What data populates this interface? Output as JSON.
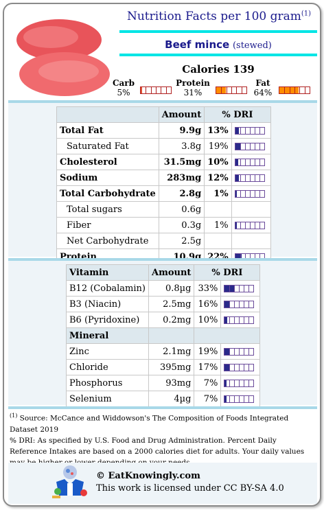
{
  "header": {
    "title": "Nutrition Facts per 100 gram",
    "title_note": "(1)",
    "food_name": "Beef mince",
    "food_qualifier": "(stewed)",
    "calories_label": "Calories 139"
  },
  "macros": [
    {
      "label": "Carb",
      "pct": "5%",
      "fraction": 0.05,
      "color": "#e05030"
    },
    {
      "label": "Protein",
      "pct": "31%",
      "fraction": 0.31,
      "color": "#ff8c00"
    },
    {
      "label": "Fat",
      "pct": "64%",
      "fraction": 0.64,
      "color": "#ff8c00"
    }
  ],
  "nutrients": {
    "col_amount": "Amount",
    "col_dri": "% DRI",
    "rows": [
      {
        "name": "Total Fat",
        "amount": "9.9g",
        "dri": "13%",
        "level": 0.13,
        "bold": true,
        "indent": false
      },
      {
        "name": "Saturated Fat",
        "amount": "3.8g",
        "dri": "19%",
        "level": 0.19,
        "bold": false,
        "indent": true
      },
      {
        "name": "Cholesterol",
        "amount": "31.5mg",
        "dri": "10%",
        "level": 0.1,
        "bold": true,
        "indent": false
      },
      {
        "name": "Sodium",
        "amount": "283mg",
        "dri": "12%",
        "level": 0.12,
        "bold": true,
        "indent": false
      },
      {
        "name": "Total Carbohydrate",
        "amount": "2.8g",
        "dri": "1%",
        "level": 0.01,
        "bold": true,
        "indent": false
      },
      {
        "name": "Total sugars",
        "amount": "0.6g",
        "dri": "",
        "level": null,
        "bold": false,
        "indent": true
      },
      {
        "name": "Fiber",
        "amount": "0.3g",
        "dri": "1%",
        "level": 0.01,
        "bold": false,
        "indent": true
      },
      {
        "name": "Net Carbohydrate",
        "amount": "2.5g",
        "dri": "",
        "level": null,
        "bold": false,
        "indent": true
      },
      {
        "name": "Protein",
        "amount": "10.9g",
        "dri": "22%",
        "level": 0.22,
        "bold": true,
        "indent": false
      }
    ]
  },
  "vitamins": {
    "col_name": "Vitamin",
    "col_amount": "Amount",
    "col_dri": "% DRI",
    "rows": [
      {
        "name": "B12 (Cobalamin)",
        "amount": "0.8µg",
        "dri": "33%",
        "level": 0.33
      },
      {
        "name": "B3 (Niacin)",
        "amount": "2.5mg",
        "dri": "16%",
        "level": 0.16
      },
      {
        "name": "B6 (Pyridoxine)",
        "amount": "0.2mg",
        "dri": "10%",
        "level": 0.1
      }
    ]
  },
  "minerals": {
    "col_name": "Mineral",
    "rows": [
      {
        "name": "Zinc",
        "amount": "2.1mg",
        "dri": "19%",
        "level": 0.19
      },
      {
        "name": "Chloride",
        "amount": "395mg",
        "dri": "17%",
        "level": 0.17
      },
      {
        "name": "Phosphorus",
        "amount": "93mg",
        "dri": "7%",
        "level": 0.07
      },
      {
        "name": "Selenium",
        "amount": "4µg",
        "dri": "7%",
        "level": 0.07
      }
    ]
  },
  "footer": {
    "note_mark": "(1)",
    "source": " Source: McCance and Widdowson's The Composition of Foods Integrated Dataset 2019",
    "dri_note": "% DRI: As specified by U.S. Food and Drug Administration. Percent Daily Reference Intakes are based on a 2000 calories diet for adults. Your daily values may be higher or lower depending on your needs."
  },
  "branding": {
    "site": "© EatKnowingly.com",
    "license": "This work is licensed under CC BY-SA 4.0"
  }
}
